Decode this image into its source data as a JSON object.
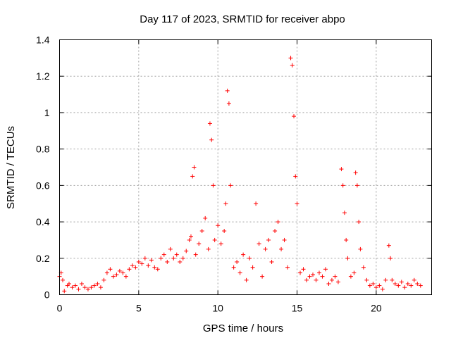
{
  "chart_data": {
    "type": "scatter",
    "title": "Day 117 of 2023, SRMTID for receiver abpo",
    "xlabel": "GPS time / hours",
    "ylabel": "SRMTID / TECUs",
    "xlim": [
      0,
      23.5
    ],
    "ylim": [
      0,
      1.4
    ],
    "xticks": [
      0,
      5,
      10,
      15,
      20
    ],
    "yticks": [
      0,
      0.2,
      0.4,
      0.6,
      0.8,
      1,
      1.2,
      1.4
    ],
    "xtick_labels": [
      "0",
      "5",
      "10",
      "15",
      "20"
    ],
    "ytick_labels": [
      "0",
      "0.2",
      "0.4",
      "0.6",
      "0.8",
      "1",
      "1.2",
      "1.4"
    ],
    "grid": true,
    "marker": "+",
    "color": "#ff0000",
    "series": [
      {
        "name": "SRMTID",
        "x": [
          0.0,
          0.1,
          0.2,
          0.3,
          0.5,
          0.6,
          0.8,
          1.0,
          1.2,
          1.4,
          1.6,
          1.8,
          2.0,
          2.2,
          2.4,
          2.6,
          2.8,
          3.0,
          3.2,
          3.4,
          3.6,
          3.8,
          4.0,
          4.2,
          4.4,
          4.6,
          4.8,
          5.0,
          5.2,
          5.4,
          5.6,
          5.8,
          6.0,
          6.2,
          6.4,
          6.6,
          6.8,
          7.0,
          7.2,
          7.4,
          7.6,
          7.8,
          8.0,
          8.2,
          8.3,
          8.4,
          8.5,
          8.6,
          8.8,
          9.0,
          9.2,
          9.4,
          9.5,
          9.6,
          9.7,
          9.8,
          10.0,
          10.2,
          10.4,
          10.5,
          10.6,
          10.7,
          10.8,
          11.0,
          11.2,
          11.4,
          11.6,
          11.8,
          12.0,
          12.2,
          12.4,
          12.6,
          12.8,
          13.0,
          13.2,
          13.4,
          13.6,
          13.8,
          14.0,
          14.2,
          14.4,
          14.6,
          14.7,
          14.8,
          14.9,
          15.0,
          15.2,
          15.4,
          15.6,
          15.8,
          16.0,
          16.2,
          16.4,
          16.6,
          16.8,
          17.0,
          17.2,
          17.4,
          17.6,
          17.8,
          17.9,
          18.0,
          18.1,
          18.2,
          18.4,
          18.6,
          18.7,
          18.8,
          18.9,
          19.0,
          19.2,
          19.4,
          19.6,
          19.8,
          20.0,
          20.2,
          20.4,
          20.6,
          20.8,
          20.9,
          21.0,
          21.2,
          21.4,
          21.6,
          21.8,
          22.0,
          22.2,
          22.4,
          22.6,
          22.8
        ],
        "y": [
          0.1,
          0.12,
          0.08,
          0.02,
          0.05,
          0.06,
          0.04,
          0.05,
          0.03,
          0.06,
          0.04,
          0.03,
          0.04,
          0.05,
          0.06,
          0.04,
          0.08,
          0.12,
          0.14,
          0.1,
          0.11,
          0.13,
          0.12,
          0.1,
          0.14,
          0.16,
          0.15,
          0.18,
          0.17,
          0.2,
          0.16,
          0.19,
          0.15,
          0.14,
          0.2,
          0.22,
          0.18,
          0.25,
          0.2,
          0.22,
          0.18,
          0.2,
          0.24,
          0.3,
          0.32,
          0.65,
          0.7,
          0.22,
          0.28,
          0.35,
          0.42,
          0.25,
          0.94,
          0.85,
          0.6,
          0.3,
          0.38,
          0.28,
          0.35,
          0.5,
          1.12,
          1.05,
          0.6,
          0.15,
          0.18,
          0.12,
          0.22,
          0.08,
          0.2,
          0.15,
          0.5,
          0.28,
          0.1,
          0.25,
          0.3,
          0.18,
          0.35,
          0.4,
          0.25,
          0.3,
          0.15,
          1.3,
          1.26,
          0.98,
          0.65,
          0.5,
          0.12,
          0.14,
          0.08,
          0.1,
          0.11,
          0.08,
          0.12,
          0.1,
          0.14,
          0.06,
          0.08,
          0.1,
          0.07,
          0.69,
          0.6,
          0.45,
          0.3,
          0.2,
          0.1,
          0.12,
          0.67,
          0.6,
          0.4,
          0.25,
          0.15,
          0.08,
          0.05,
          0.06,
          0.04,
          0.05,
          0.03,
          0.08,
          0.27,
          0.2,
          0.08,
          0.06,
          0.05,
          0.07,
          0.04,
          0.06,
          0.05,
          0.08,
          0.06,
          0.05
        ]
      }
    ]
  }
}
